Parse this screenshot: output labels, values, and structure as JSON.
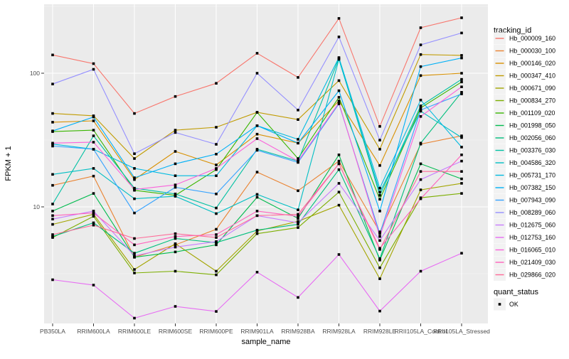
{
  "chart_data": {
    "type": "line",
    "title": "",
    "xlabel": "sample_name",
    "ylabel": "FPKM + 1",
    "y_scale": "log10",
    "y_ticks": [
      100,
      10
    ],
    "y_minor_ticks": [
      316.2,
      31.62,
      3.162
    ],
    "ylim": [
      1.35,
      330
    ],
    "grid": true,
    "legend_position": "right",
    "panel_bg": "#EBEBEB",
    "grid_major_color": "#FFFFFF",
    "grid_minor_color": "#FFFFFF",
    "point_color": "#000000",
    "categories": [
      "PB350LA",
      "RRIM600LA",
      "RRIM600LE",
      "RRIM600SE",
      "RRIM600PE",
      "RRIM901LA",
      "RRIM928BA",
      "RRIM928LA",
      "RRIM928LE",
      "RRII105LA_Control",
      "RRII105LA_Stressed"
    ],
    "series": [
      {
        "name": "Hb_000009_160",
        "color": "#F8766D",
        "values": [
          137,
          118,
          50,
          67,
          84,
          141,
          93,
          257,
          40,
          219,
          260
        ]
      },
      {
        "name": "Hb_000030_100",
        "color": "#EA8331",
        "values": [
          14.5,
          17,
          4.2,
          5.2,
          6.8,
          18.2,
          13.2,
          22,
          6.5,
          29.5,
          34
        ]
      },
      {
        "name": "Hb_000146_020",
        "color": "#D89000",
        "values": [
          43,
          44,
          16,
          26,
          20.6,
          35,
          30,
          62,
          20.4,
          96,
          100
        ]
      },
      {
        "name": "Hb_000347_410",
        "color": "#C09B00",
        "values": [
          50,
          48,
          23,
          37.5,
          39.4,
          51,
          45,
          88,
          27,
          138,
          136
        ]
      },
      {
        "name": "Hb_000671_090",
        "color": "#A3A500",
        "values": [
          7.4,
          8.8,
          3.4,
          5.3,
          3.3,
          6.6,
          7.8,
          10.3,
          2.9,
          13.4,
          15
        ]
      },
      {
        "name": "Hb_000834_270",
        "color": "#7CAE00",
        "values": [
          5.9,
          8.5,
          3.2,
          3.3,
          3.1,
          6.3,
          7.0,
          12.9,
          3.5,
          11.7,
          12.6
        ]
      },
      {
        "name": "Hb_001109_020",
        "color": "#39B600",
        "values": [
          36.6,
          37.5,
          13.3,
          12.2,
          19.0,
          51,
          23,
          66,
          11.4,
          55,
          86
        ]
      },
      {
        "name": "Hb_001998_050",
        "color": "#00BB4E",
        "values": [
          9.3,
          12.6,
          4.2,
          4.6,
          5.2,
          11.8,
          8.2,
          24.5,
          4.0,
          21,
          16.2
        ]
      },
      {
        "name": "Hb_002056_060",
        "color": "#00BF7D",
        "values": [
          6.0,
          7.6,
          4.5,
          5.8,
          5.4,
          6.7,
          7.4,
          19,
          4.1,
          30,
          72
        ]
      },
      {
        "name": "Hb_003376_030",
        "color": "#00C1A3",
        "values": [
          10.5,
          34,
          13.8,
          12.5,
          9.8,
          27,
          22,
          129,
          12.2,
          57,
          90
        ]
      },
      {
        "name": "Hb_004586_320",
        "color": "#00BFC4",
        "values": [
          17.5,
          19.4,
          11.5,
          12.0,
          8.9,
          12.4,
          9.5,
          127,
          12.9,
          52,
          33
        ]
      },
      {
        "name": "Hb_005731_170",
        "color": "#00BAE0",
        "values": [
          29.5,
          27,
          19.4,
          17.1,
          17.1,
          40.5,
          32,
          131,
          13.8,
          63,
          28
        ]
      },
      {
        "name": "Hb_007382_150",
        "color": "#00B0F6",
        "values": [
          37,
          47,
          16.5,
          21,
          24.8,
          40.5,
          30,
          74,
          9.3,
          112,
          130
        ]
      },
      {
        "name": "Hb_007943_090",
        "color": "#35A2FF",
        "values": [
          28.5,
          27,
          9.0,
          14,
          12.5,
          26.5,
          21.5,
          59,
          6.3,
          53,
          70
        ]
      },
      {
        "name": "Hb_008289_060",
        "color": "#9590FF",
        "values": [
          83,
          107,
          25,
          36,
          29.4,
          100,
          53,
          187,
          31.6,
          163,
          200
        ]
      },
      {
        "name": "Hb_012675_060",
        "color": "#C77CFF",
        "values": [
          8.1,
          9.3,
          4.3,
          5.0,
          5.5,
          8.6,
          7.6,
          15,
          5.6,
          16,
          22
        ]
      },
      {
        "name": "Hb_012753_160",
        "color": "#E76BF3",
        "values": [
          2.85,
          2.6,
          1.47,
          1.8,
          1.65,
          3.25,
          2.1,
          4.4,
          1.66,
          3.3,
          4.5
        ]
      },
      {
        "name": "Hb_016065_010",
        "color": "#FA62DB",
        "values": [
          30,
          30.5,
          13.5,
          14.6,
          19.4,
          32.4,
          22,
          60,
          6.0,
          47.5,
          79
        ]
      },
      {
        "name": "Hb_021409_030",
        "color": "#FF62BC",
        "values": [
          8.6,
          9.0,
          5.2,
          6.0,
          6.2,
          9.3,
          8.5,
          21,
          4.9,
          11.5,
          24.5
        ]
      },
      {
        "name": "Hb_029866_020",
        "color": "#FF6A98",
        "values": [
          6.2,
          7.3,
          5.8,
          6.3,
          5.9,
          8.6,
          8.8,
          21,
          4.8,
          18.4,
          18.4
        ]
      }
    ],
    "legend": {
      "tracking_title": "tracking_id",
      "quant_title": "quant_status",
      "quant_items": [
        {
          "label": "OK",
          "shape": "filled-square",
          "color": "#000000"
        }
      ]
    }
  }
}
